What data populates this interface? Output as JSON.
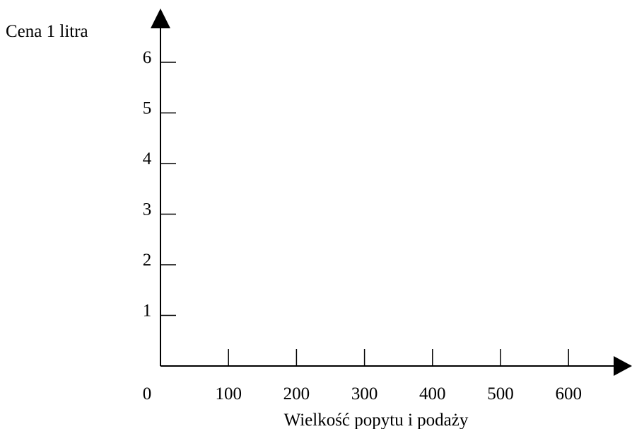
{
  "chart_data": {
    "type": "line",
    "title": "",
    "xlabel": "Wielkość popytu i podaży",
    "ylabel": "Cena 1 litra",
    "x_origin_label": "0",
    "x_ticks": [
      "100",
      "200",
      "300",
      "400",
      "500",
      "600"
    ],
    "y_ticks": [
      "1",
      "2",
      "3",
      "4",
      "5",
      "6"
    ],
    "xlim": [
      0,
      700
    ],
    "ylim": [
      0,
      6
    ],
    "series": [],
    "grid": false,
    "legend": "none"
  },
  "colors": {
    "axis": "#000000",
    "background": "#ffffff"
  }
}
